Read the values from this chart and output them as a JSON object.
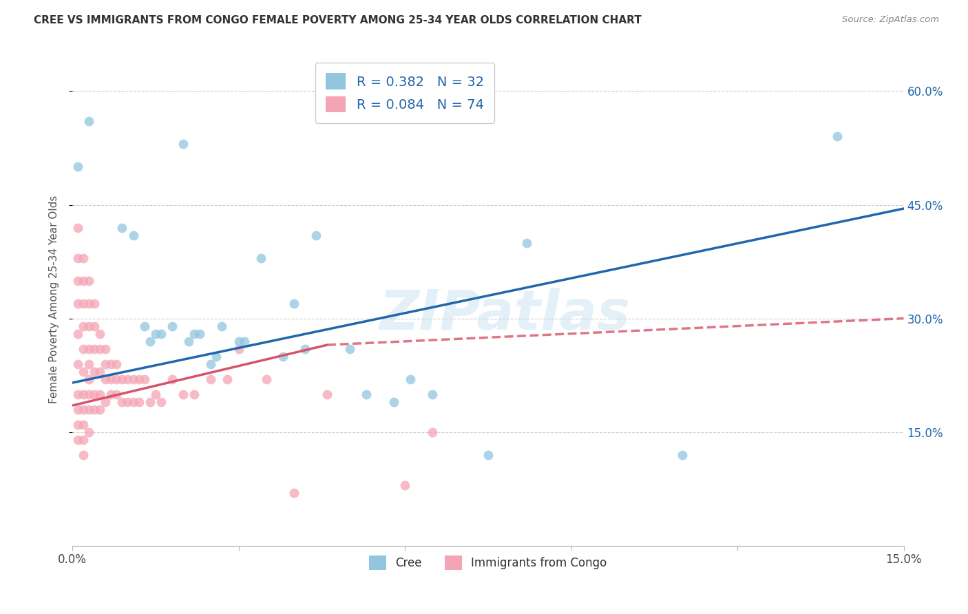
{
  "title": "CREE VS IMMIGRANTS FROM CONGO FEMALE POVERTY AMONG 25-34 YEAR OLDS CORRELATION CHART",
  "source": "Source: ZipAtlas.com",
  "ylabel": "Female Poverty Among 25-34 Year Olds",
  "xlim": [
    0.0,
    0.15
  ],
  "ylim": [
    0.0,
    0.65
  ],
  "legend_blue_r": "0.382",
  "legend_blue_n": "32",
  "legend_pink_r": "0.084",
  "legend_pink_n": "74",
  "blue_scatter_color": "#92c5de",
  "pink_scatter_color": "#f4a5b5",
  "blue_line_color": "#2166ac",
  "pink_line_color": "#d6546a",
  "watermark": "ZIPatlas",
  "ytick_positions": [
    0.15,
    0.3,
    0.45,
    0.6
  ],
  "ytick_labels": [
    "15.0%",
    "30.0%",
    "45.0%",
    "60.0%"
  ],
  "xtick_positions": [
    0.0,
    0.03,
    0.06,
    0.09,
    0.12,
    0.15
  ],
  "xtick_labels": [
    "0.0%",
    "",
    "",
    "",
    "",
    "15.0%"
  ],
  "cree_x": [
    0.001,
    0.003,
    0.009,
    0.011,
    0.013,
    0.014,
    0.015,
    0.016,
    0.018,
    0.02,
    0.021,
    0.022,
    0.023,
    0.025,
    0.026,
    0.027,
    0.03,
    0.031,
    0.034,
    0.038,
    0.04,
    0.042,
    0.044,
    0.05,
    0.053,
    0.058,
    0.061,
    0.065,
    0.075,
    0.082,
    0.11,
    0.138
  ],
  "cree_y": [
    0.5,
    0.56,
    0.42,
    0.41,
    0.29,
    0.27,
    0.28,
    0.28,
    0.29,
    0.53,
    0.27,
    0.28,
    0.28,
    0.24,
    0.25,
    0.29,
    0.27,
    0.27,
    0.38,
    0.25,
    0.32,
    0.26,
    0.41,
    0.26,
    0.2,
    0.19,
    0.22,
    0.2,
    0.12,
    0.4,
    0.12,
    0.54
  ],
  "congo_x": [
    0.001,
    0.001,
    0.001,
    0.001,
    0.001,
    0.001,
    0.001,
    0.001,
    0.001,
    0.001,
    0.002,
    0.002,
    0.002,
    0.002,
    0.002,
    0.002,
    0.002,
    0.002,
    0.002,
    0.002,
    0.002,
    0.003,
    0.003,
    0.003,
    0.003,
    0.003,
    0.003,
    0.003,
    0.003,
    0.003,
    0.004,
    0.004,
    0.004,
    0.004,
    0.004,
    0.004,
    0.005,
    0.005,
    0.005,
    0.005,
    0.005,
    0.006,
    0.006,
    0.006,
    0.006,
    0.007,
    0.007,
    0.007,
    0.008,
    0.008,
    0.008,
    0.009,
    0.009,
    0.01,
    0.01,
    0.011,
    0.011,
    0.012,
    0.012,
    0.013,
    0.014,
    0.015,
    0.016,
    0.018,
    0.02,
    0.022,
    0.025,
    0.028,
    0.03,
    0.035,
    0.04,
    0.046,
    0.06,
    0.065
  ],
  "congo_y": [
    0.42,
    0.38,
    0.35,
    0.32,
    0.28,
    0.24,
    0.2,
    0.18,
    0.16,
    0.14,
    0.38,
    0.35,
    0.32,
    0.29,
    0.26,
    0.23,
    0.2,
    0.18,
    0.16,
    0.14,
    0.12,
    0.35,
    0.32,
    0.29,
    0.26,
    0.24,
    0.22,
    0.2,
    0.18,
    0.15,
    0.32,
    0.29,
    0.26,
    0.23,
    0.2,
    0.18,
    0.28,
    0.26,
    0.23,
    0.2,
    0.18,
    0.26,
    0.24,
    0.22,
    0.19,
    0.24,
    0.22,
    0.2,
    0.24,
    0.22,
    0.2,
    0.22,
    0.19,
    0.22,
    0.19,
    0.22,
    0.19,
    0.22,
    0.19,
    0.22,
    0.19,
    0.2,
    0.19,
    0.22,
    0.2,
    0.2,
    0.22,
    0.22,
    0.26,
    0.22,
    0.07,
    0.2,
    0.08,
    0.15
  ],
  "blue_regression": [
    0.0,
    0.15,
    0.215,
    0.445
  ],
  "pink_regression_solid": [
    0.0,
    0.046,
    0.185,
    0.265
  ],
  "pink_regression_dash": [
    0.046,
    0.15,
    0.265,
    0.3
  ]
}
